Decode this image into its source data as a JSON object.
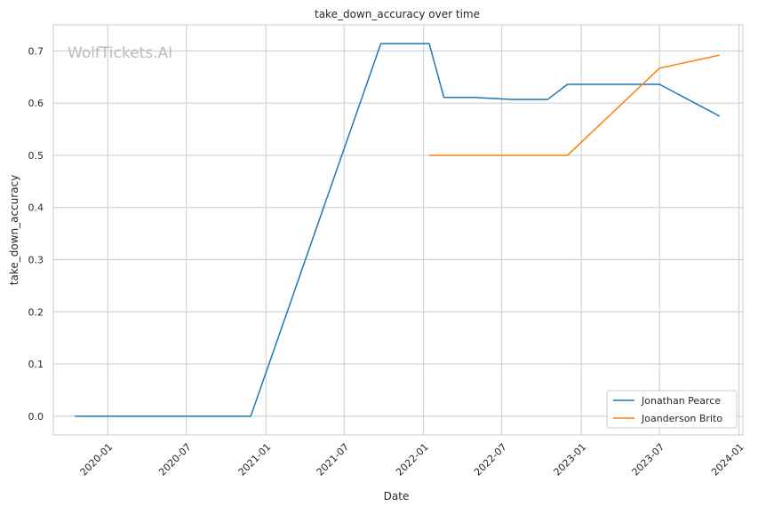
{
  "chart_data": {
    "type": "line",
    "title": "take_down_accuracy over time",
    "xlabel": "Date",
    "ylabel": "take_down_accuracy",
    "watermark": "WolfTickets.AI",
    "xlim": [
      "2019-08-28",
      "2024-01-10"
    ],
    "ylim": [
      -0.036,
      0.75
    ],
    "xticks": [
      "2020-01",
      "2020-07",
      "2021-01",
      "2021-07",
      "2022-01",
      "2022-07",
      "2023-01",
      "2023-07",
      "2024-01"
    ],
    "yticks": [
      "0.0",
      "0.1",
      "0.2",
      "0.3",
      "0.4",
      "0.5",
      "0.6",
      "0.7"
    ],
    "grid": true,
    "legend_position": "lower-right",
    "series": [
      {
        "name": "Jonathan Pearce",
        "color": "#1f77b4",
        "x": [
          "2019-10-17",
          "2020-11-27",
          "2021-09-24",
          "2022-01-14",
          "2022-02-17",
          "2022-04-28",
          "2022-07-24",
          "2022-10-15",
          "2022-11-30",
          "2023-07-01",
          "2023-11-17"
        ],
        "y": [
          0.0,
          0.0,
          0.714,
          0.714,
          0.611,
          0.611,
          0.607,
          0.607,
          0.636,
          0.636,
          0.575
        ]
      },
      {
        "name": "Joanderson Brito",
        "color": "#ff7f0e",
        "x": [
          "2022-01-14",
          "2022-11-30",
          "2023-07-01",
          "2023-11-17"
        ],
        "y": [
          0.5,
          0.5,
          0.667,
          0.692
        ]
      }
    ]
  }
}
